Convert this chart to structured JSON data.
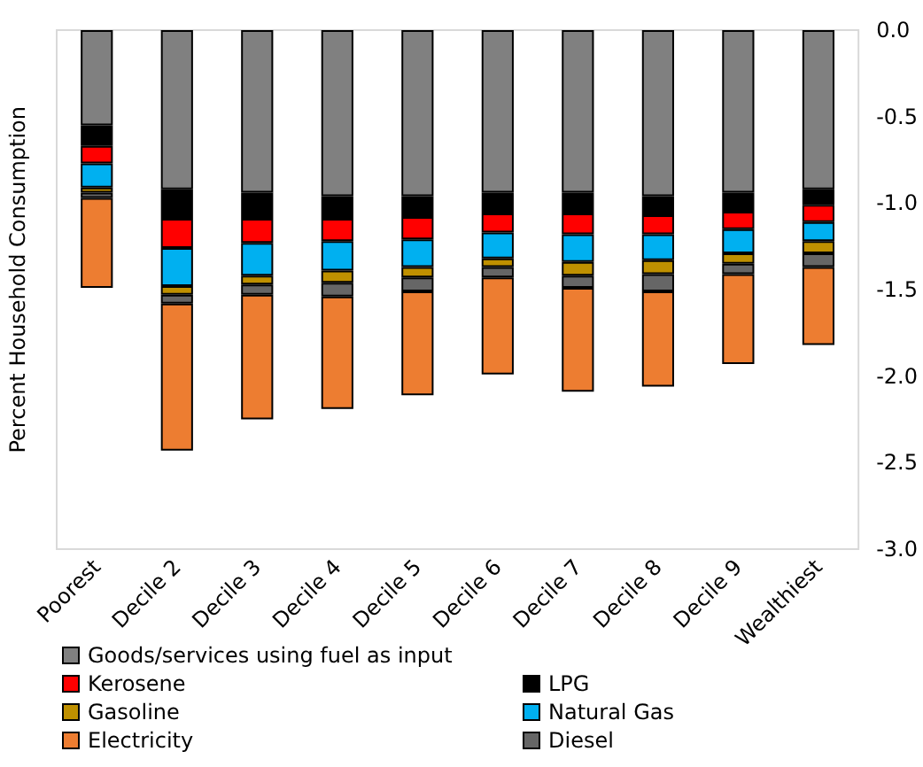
{
  "chart_data": {
    "type": "bar",
    "stacked": true,
    "ylabel": "Percent Household Consumption",
    "categories": [
      "Poorest",
      "Decile 2",
      "Decile 3",
      "Decile 4",
      "Decile 5",
      "Decile 6",
      "Decile 7",
      "Decile 8",
      "Decile 9",
      "Wealthiest"
    ],
    "series": [
      {
        "name": "Goods/services using fuel as input",
        "color": "#808080",
        "values": [
          -0.55,
          -0.92,
          -0.94,
          -0.96,
          -0.96,
          -0.94,
          -0.94,
          -0.96,
          -0.94,
          -0.92
        ]
      },
      {
        "name": "LPG",
        "color": "#000000",
        "values": [
          -0.12,
          -0.17,
          -0.15,
          -0.13,
          -0.12,
          -0.12,
          -0.12,
          -0.11,
          -0.11,
          -0.09
        ]
      },
      {
        "name": "Kerosene",
        "color": "#ff0000",
        "values": [
          -0.1,
          -0.17,
          -0.14,
          -0.13,
          -0.13,
          -0.11,
          -0.12,
          -0.11,
          -0.1,
          -0.1
        ]
      },
      {
        "name": "Natural Gas",
        "color": "#00b0f0",
        "values": [
          -0.14,
          -0.22,
          -0.19,
          -0.17,
          -0.16,
          -0.15,
          -0.16,
          -0.15,
          -0.14,
          -0.11
        ]
      },
      {
        "name": "Gasoline",
        "color": "#bf9000",
        "values": [
          -0.03,
          -0.05,
          -0.05,
          -0.07,
          -0.06,
          -0.05,
          -0.08,
          -0.08,
          -0.06,
          -0.07
        ]
      },
      {
        "name": "Diesel",
        "color": "#666666",
        "values": [
          -0.03,
          -0.05,
          -0.06,
          -0.08,
          -0.08,
          -0.06,
          -0.07,
          -0.1,
          -0.06,
          -0.08
        ]
      },
      {
        "name": "Electricity",
        "color": "#ed7d31",
        "values": [
          -0.52,
          -0.85,
          -0.72,
          -0.65,
          -0.6,
          -0.56,
          -0.6,
          -0.55,
          -0.52,
          -0.45
        ]
      }
    ],
    "ylim": [
      -3,
      0
    ],
    "yticks": [
      {
        "value": 0,
        "label": "0.0"
      },
      {
        "value": -0.5,
        "label": "-0.5"
      },
      {
        "value": -1,
        "label": "-1.0"
      },
      {
        "value": -1.5,
        "label": "-1.5"
      },
      {
        "value": -2,
        "label": "-2.0"
      },
      {
        "value": -2.5,
        "label": "-2.5"
      },
      {
        "value": -3,
        "label": "-3.0"
      }
    ],
    "grid": false,
    "legend": "bottom"
  }
}
